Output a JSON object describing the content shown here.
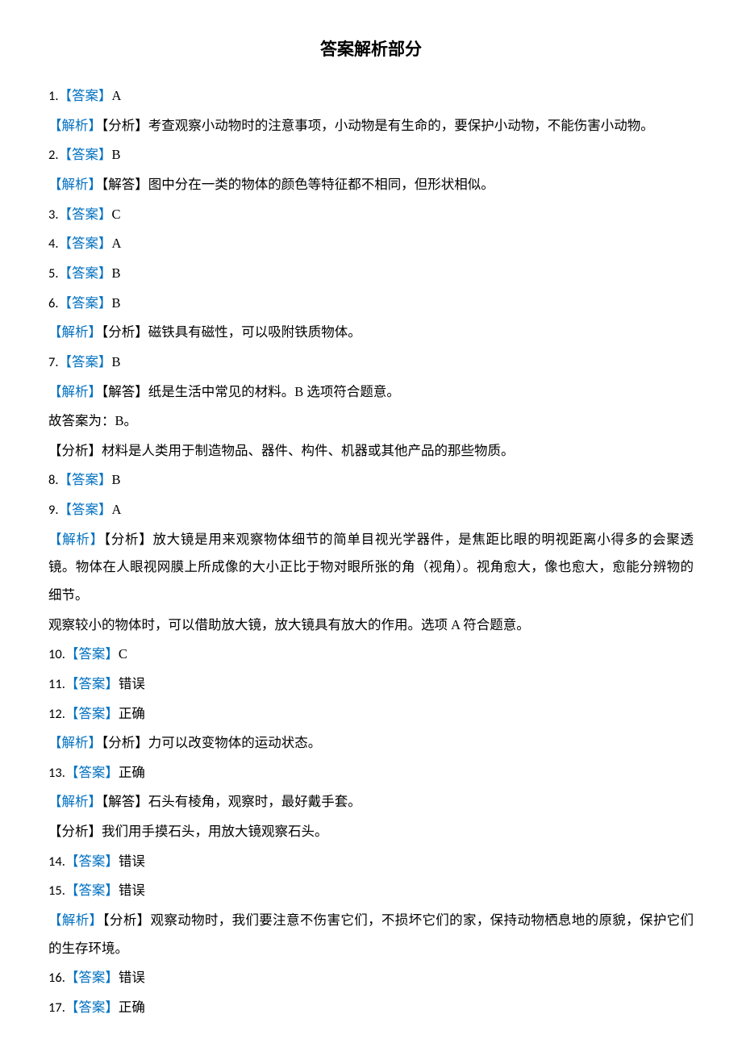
{
  "title": "答案解析部分",
  "labels": {
    "answer": "【答案】",
    "analysis": "【解析】",
    "analysis_type": "【分析】",
    "explain": "【解答】"
  },
  "items": [
    {
      "num": "1.",
      "answer": "A",
      "analysis": [
        {
          "prefix": "【解析】【分析】",
          "text": "考查观察小动物时的注意事项，小动物是有生命的，要保护小动物，不能伤害小动物。"
        }
      ]
    },
    {
      "num": "2.",
      "answer": "B",
      "analysis": [
        {
          "prefix": "【解析】【解答】",
          "text": "图中分在一类的物体的颜色等特征都不相同，但形状相似。"
        }
      ]
    },
    {
      "num": "3.",
      "answer": "C"
    },
    {
      "num": "4.",
      "answer": "A"
    },
    {
      "num": "5.",
      "answer": "B"
    },
    {
      "num": "6.",
      "answer": "B",
      "analysis": [
        {
          "prefix": "【解析】【分析】",
          "text": "磁铁具有磁性，可以吸附铁质物体。"
        }
      ]
    },
    {
      "num": "7.",
      "answer": "B",
      "analysis": [
        {
          "prefix": "【解析】【解答】",
          "text": "纸是生活中常见的材料。B 选项符合题意。"
        }
      ],
      "extra": [
        "故答案为：B。",
        {
          "prefix": "【分析】",
          "text": "材料是人类用于制造物品、器件、构件、机器或其他产品的那些物质。"
        }
      ]
    },
    {
      "num": "8.",
      "answer": "B"
    },
    {
      "num": "9.",
      "answer": "A",
      "analysis": [
        {
          "prefix": "【解析】【分析】",
          "text": "放大镜是用来观察物体细节的简单目视光学器件，是焦距比眼的明视距离小得多的会聚透镜。物体在人眼视网膜上所成像的大小正比于物对眼所张的角（视角）。视角愈大，像也愈大，愈能分辨物的细节。"
        }
      ],
      "extra": [
        "观察较小的物体时，可以借助放大镜，放大镜具有放大的作用。选项 A 符合题意。"
      ]
    },
    {
      "num": "10.",
      "answer": "C"
    },
    {
      "num": "11.",
      "answer": "错误"
    },
    {
      "num": "12.",
      "answer": "正确",
      "analysis": [
        {
          "prefix": "【解析】【分析】",
          "text": "力可以改变物体的运动状态。"
        }
      ]
    },
    {
      "num": "13.",
      "answer": "正确",
      "analysis": [
        {
          "prefix": "【解析】【解答】",
          "text": "石头有棱角，观察时，最好戴手套。"
        }
      ],
      "extra": [
        {
          "prefix": "【分析】",
          "text": "我们用手摸石头，用放大镜观察石头。"
        }
      ]
    },
    {
      "num": "14.",
      "answer": "错误"
    },
    {
      "num": "15.",
      "answer": "错误",
      "analysis": [
        {
          "prefix": "【解析】【分析】",
          "text": "观察动物时，我们要注意不伤害它们，不损坏它们的家，保持动物栖息地的原貌，保护它们的生存环境。"
        }
      ]
    },
    {
      "num": "16.",
      "answer": "错误"
    },
    {
      "num": "17.",
      "answer": "正确"
    }
  ]
}
